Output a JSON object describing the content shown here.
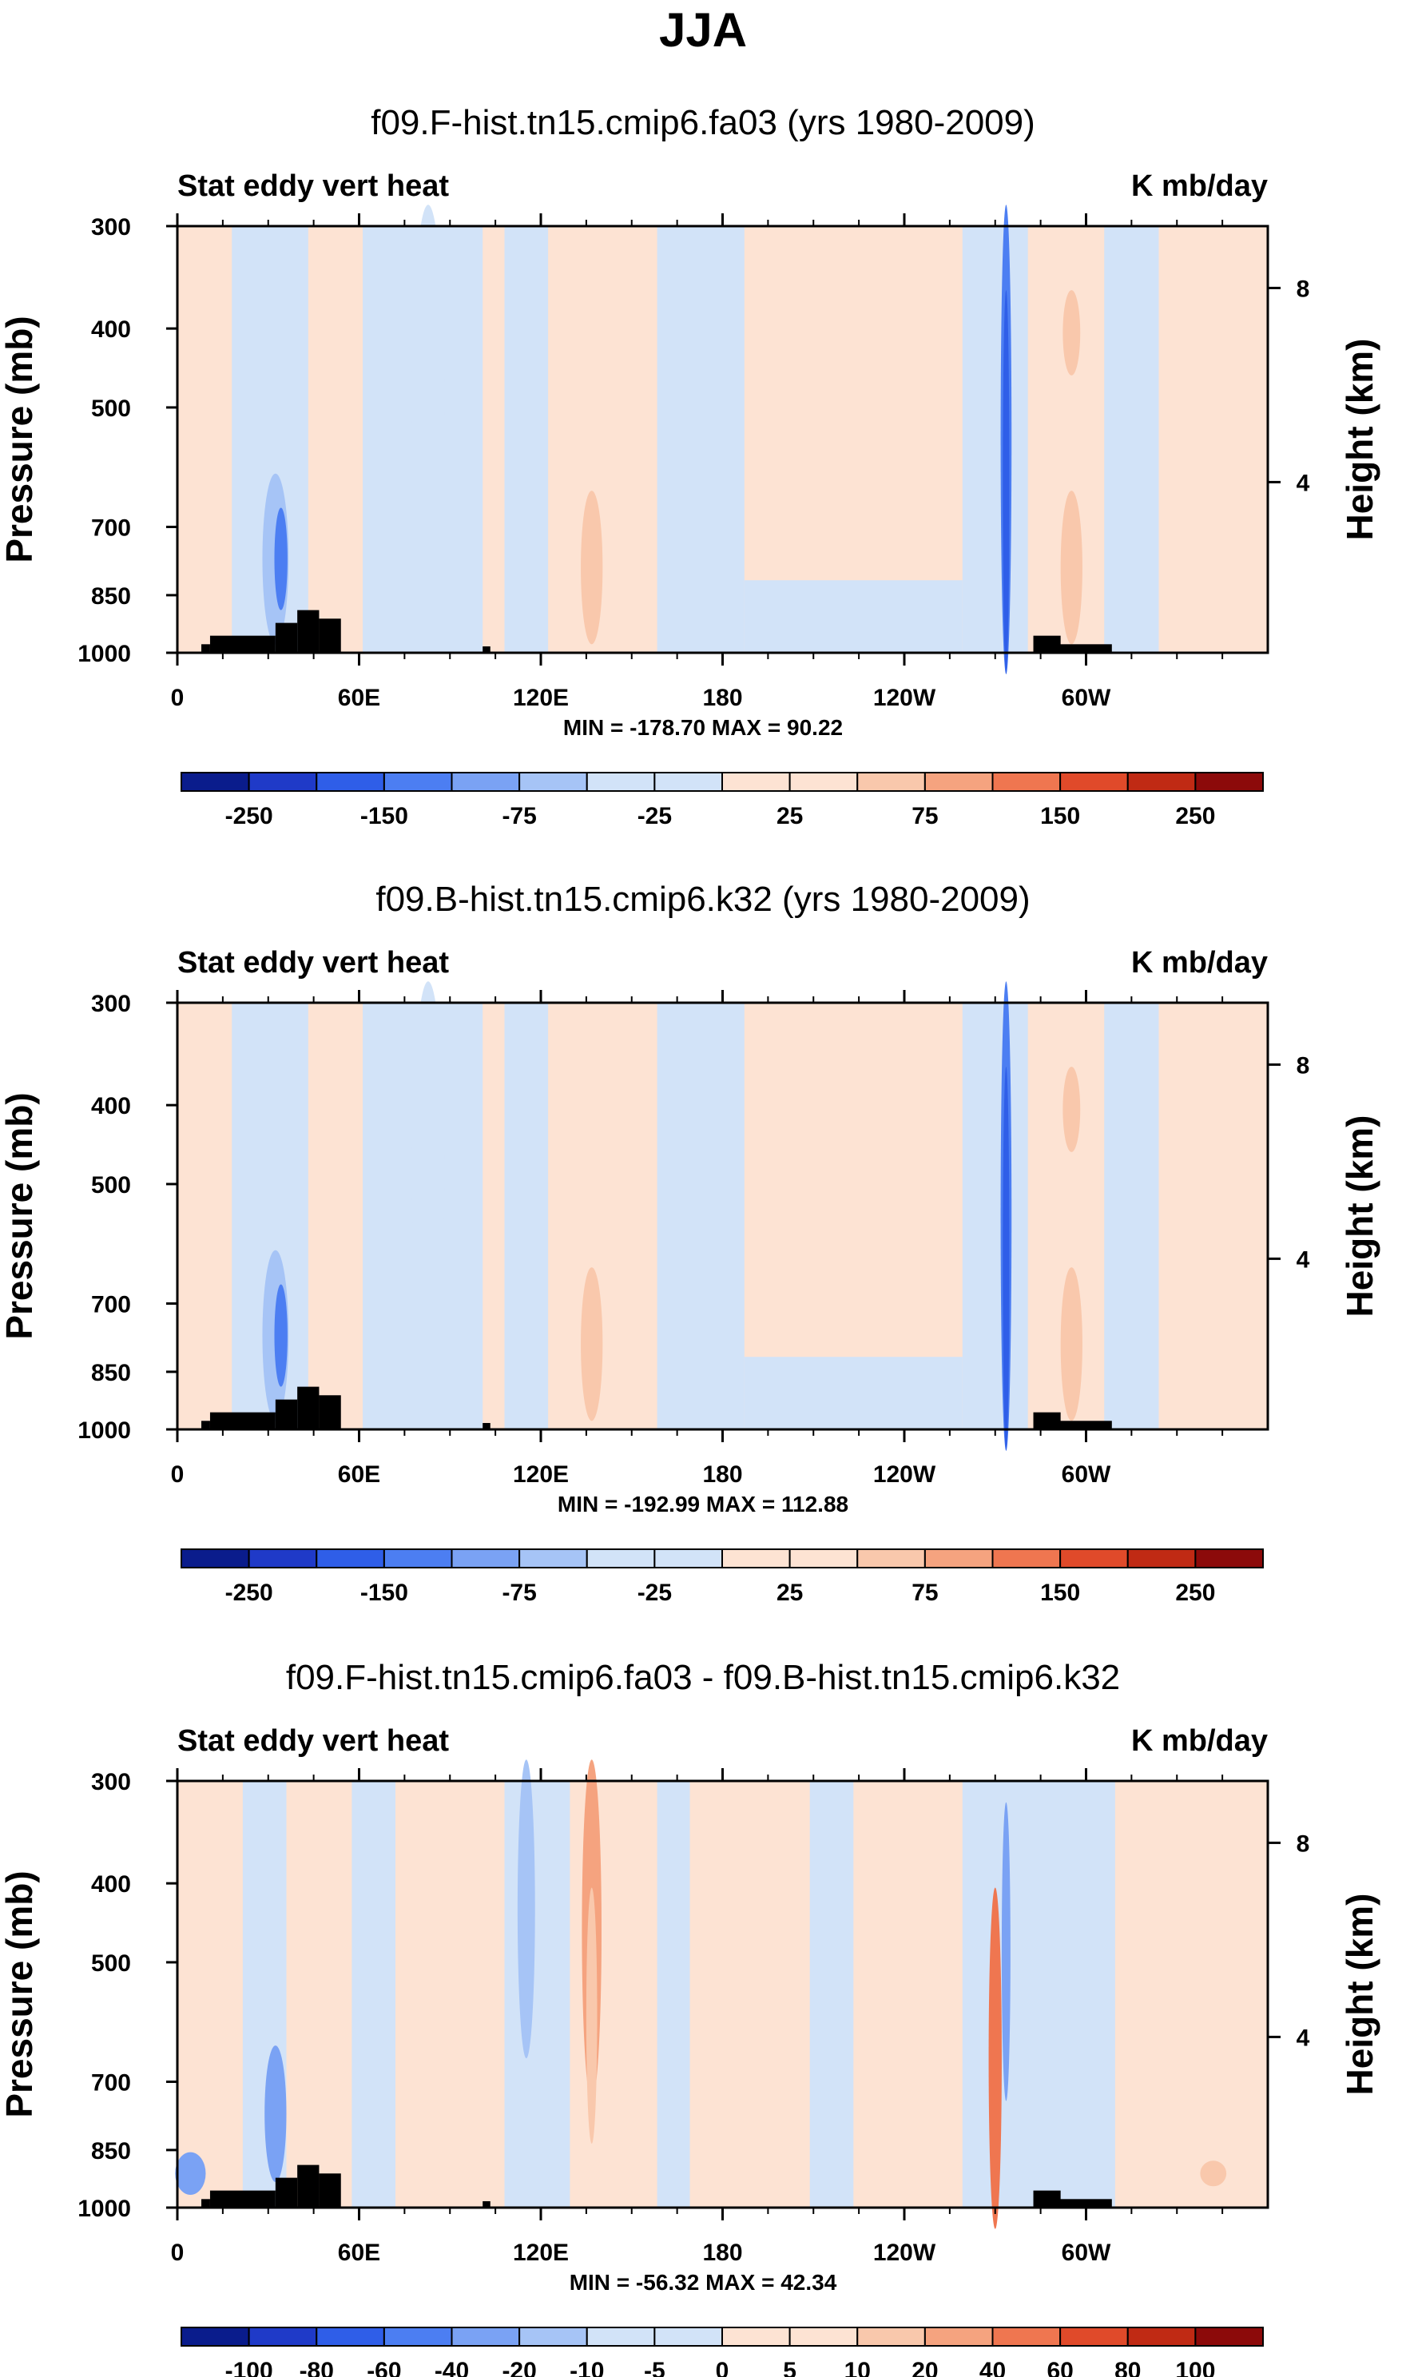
{
  "figure": {
    "title": "JJA"
  },
  "colors": {
    "neg": [
      "#0a1c8c",
      "#1f3ac8",
      "#2f5ee8",
      "#4c7ef2",
      "#7aa2f4",
      "#a6c4f6",
      "#d2e3f8"
    ],
    "pos": [
      "#fde3d3",
      "#f9c8ac",
      "#f5a37f",
      "#ef7650",
      "#e04a2a",
      "#c02a14",
      "#8c0a0a"
    ],
    "land": "#000000",
    "frame": "#000000"
  },
  "chart_data": [
    {
      "type": "heatmap",
      "title": "f09.F-hist.tn15.cmip6.fa03 (yrs 1980-2009)",
      "left_label": "Stat eddy vert heat",
      "right_label": "K mb/day",
      "xlabel": "",
      "ylabel": "Pressure (mb)",
      "ylabel_right": "Height (km)",
      "x_ticks": [
        "0",
        "60E",
        "120E",
        "180",
        "120W",
        "60W"
      ],
      "y_ticks": [
        "300",
        "400",
        "500",
        "700",
        "850",
        "1000"
      ],
      "y_right_ticks": [
        "8",
        "4"
      ],
      "stats": "MIN = -178.70  MAX =  90.22",
      "colorbar": [
        "-250",
        "-150",
        "-75",
        "-25",
        "25",
        "75",
        "150",
        "250"
      ],
      "min": -178.7,
      "max": 90.22
    },
    {
      "type": "heatmap",
      "title": "f09.B-hist.tn15.cmip6.k32 (yrs 1980-2009)",
      "left_label": "Stat eddy vert heat",
      "right_label": "K mb/day",
      "xlabel": "",
      "ylabel": "Pressure (mb)",
      "ylabel_right": "Height (km)",
      "x_ticks": [
        "0",
        "60E",
        "120E",
        "180",
        "120W",
        "60W"
      ],
      "y_ticks": [
        "300",
        "400",
        "500",
        "700",
        "850",
        "1000"
      ],
      "y_right_ticks": [
        "8",
        "4"
      ],
      "stats": "MIN = -192.99  MAX = 112.88",
      "colorbar": [
        "-250",
        "-150",
        "-75",
        "-25",
        "25",
        "75",
        "150",
        "250"
      ],
      "min": -192.99,
      "max": 112.88
    },
    {
      "type": "heatmap",
      "title": "f09.F-hist.tn15.cmip6.fa03 - f09.B-hist.tn15.cmip6.k32",
      "left_label": "Stat eddy vert heat",
      "right_label": "K mb/day",
      "xlabel": "",
      "ylabel": "Pressure (mb)",
      "ylabel_right": "Height (km)",
      "x_ticks": [
        "0",
        "60E",
        "120E",
        "180",
        "120W",
        "60W"
      ],
      "y_ticks": [
        "300",
        "400",
        "500",
        "700",
        "850",
        "1000"
      ],
      "y_right_ticks": [
        "8",
        "4"
      ],
      "stats": "MIN = -56.32  MAX = 42.34",
      "colorbar": [
        "-100",
        "-80",
        "-60",
        "-40",
        "-20",
        "-10",
        "-5",
        "0",
        "5",
        "10",
        "20",
        "40",
        "60",
        "80",
        "100"
      ],
      "min": -56.32,
      "max": 42.34
    }
  ]
}
